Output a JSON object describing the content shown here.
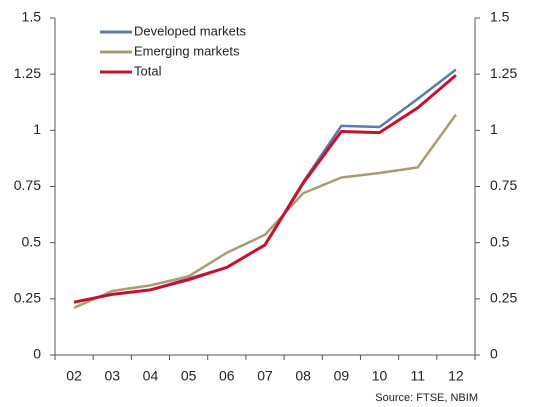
{
  "chart_data": {
    "type": "line",
    "categories": [
      "02",
      "03",
      "04",
      "05",
      "06",
      "07",
      "08",
      "09",
      "10",
      "11",
      "12"
    ],
    "series": [
      {
        "name": "Developed markets",
        "color": "#5b7ba8",
        "values": [
          0.235,
          0.27,
          0.29,
          0.34,
          0.39,
          0.49,
          0.77,
          1.02,
          1.015,
          1.14,
          1.27
        ]
      },
      {
        "name": "Emerging markets",
        "color": "#a89c74",
        "values": [
          0.21,
          0.285,
          0.31,
          0.35,
          0.455,
          0.535,
          0.72,
          0.79,
          0.81,
          0.835,
          1.07
        ]
      },
      {
        "name": "Total",
        "color": "#c8102e",
        "values": [
          0.235,
          0.27,
          0.29,
          0.335,
          0.39,
          0.49,
          0.765,
          0.995,
          0.99,
          1.1,
          1.245
        ]
      }
    ],
    "ylim": [
      0,
      1.5
    ],
    "yticks": [
      0,
      0.25,
      0.5,
      0.75,
      1,
      1.25,
      1.5
    ],
    "y2lim": [
      0,
      1.5
    ],
    "y2ticks": [
      0,
      0.25,
      0.5,
      0.75,
      1,
      1.25,
      1.5
    ],
    "source": "Source: FTSE, NBIM"
  }
}
